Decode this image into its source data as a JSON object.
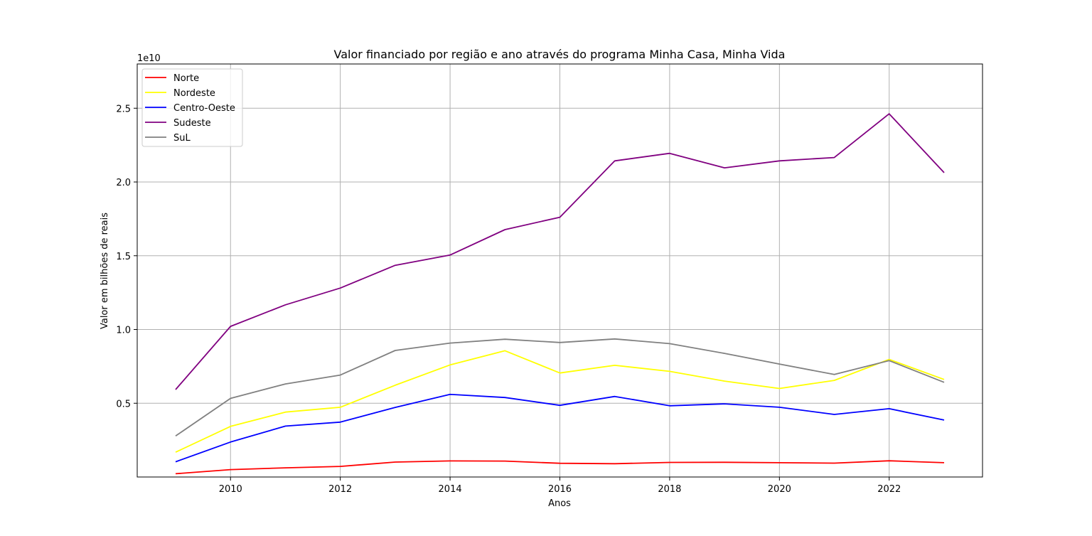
{
  "chart_data": {
    "type": "line",
    "title": "Valor financiado por região e ano através do programa Minha Casa, Minha Vida",
    "xlabel": "Anos",
    "ylabel": "Valor em bilhões de reais",
    "y_offset_label": "1e10",
    "x": [
      2009,
      2010,
      2011,
      2012,
      2013,
      2014,
      2015,
      2016,
      2017,
      2018,
      2019,
      2020,
      2021,
      2022,
      2023
    ],
    "xlim": [
      2008.3,
      2023.7
    ],
    "ylim": [
      0.0,
      2.8
    ],
    "x_ticks": [
      2010,
      2012,
      2014,
      2016,
      2018,
      2020,
      2022
    ],
    "y_ticks": [
      0.5,
      1.0,
      1.5,
      2.0,
      2.5
    ],
    "y_tick_labels": [
      "0.5",
      "1.0",
      "1.5",
      "2.0",
      "2.5"
    ],
    "grid": true,
    "legend_position": "top-left",
    "series": [
      {
        "name": "Norte",
        "color": "#ff0000",
        "values": [
          0.022,
          0.05,
          0.062,
          0.072,
          0.101,
          0.109,
          0.108,
          0.093,
          0.09,
          0.099,
          0.1,
          0.097,
          0.094,
          0.11,
          0.097
        ]
      },
      {
        "name": "Nordeste",
        "color": "#ffff00",
        "values": [
          0.168,
          0.343,
          0.44,
          0.473,
          0.622,
          0.76,
          0.856,
          0.705,
          0.757,
          0.716,
          0.65,
          0.6,
          0.655,
          0.797,
          0.661
        ]
      },
      {
        "name": "Centro-Oeste",
        "color": "#0000ff",
        "values": [
          0.103,
          0.237,
          0.345,
          0.372,
          0.472,
          0.56,
          0.539,
          0.486,
          0.546,
          0.483,
          0.496,
          0.473,
          0.424,
          0.463,
          0.386
        ]
      },
      {
        "name": "Sudeste",
        "color": "#800080",
        "values": [
          0.593,
          1.021,
          1.167,
          1.281,
          1.435,
          1.505,
          1.677,
          1.761,
          2.143,
          2.194,
          2.096,
          2.143,
          2.166,
          2.462,
          2.063
        ]
      },
      {
        "name": "SuL",
        "color": "#808080",
        "values": [
          0.278,
          0.533,
          0.631,
          0.691,
          0.858,
          0.908,
          0.934,
          0.912,
          0.936,
          0.904,
          0.838,
          0.766,
          0.695,
          0.789,
          0.642
        ]
      }
    ]
  }
}
